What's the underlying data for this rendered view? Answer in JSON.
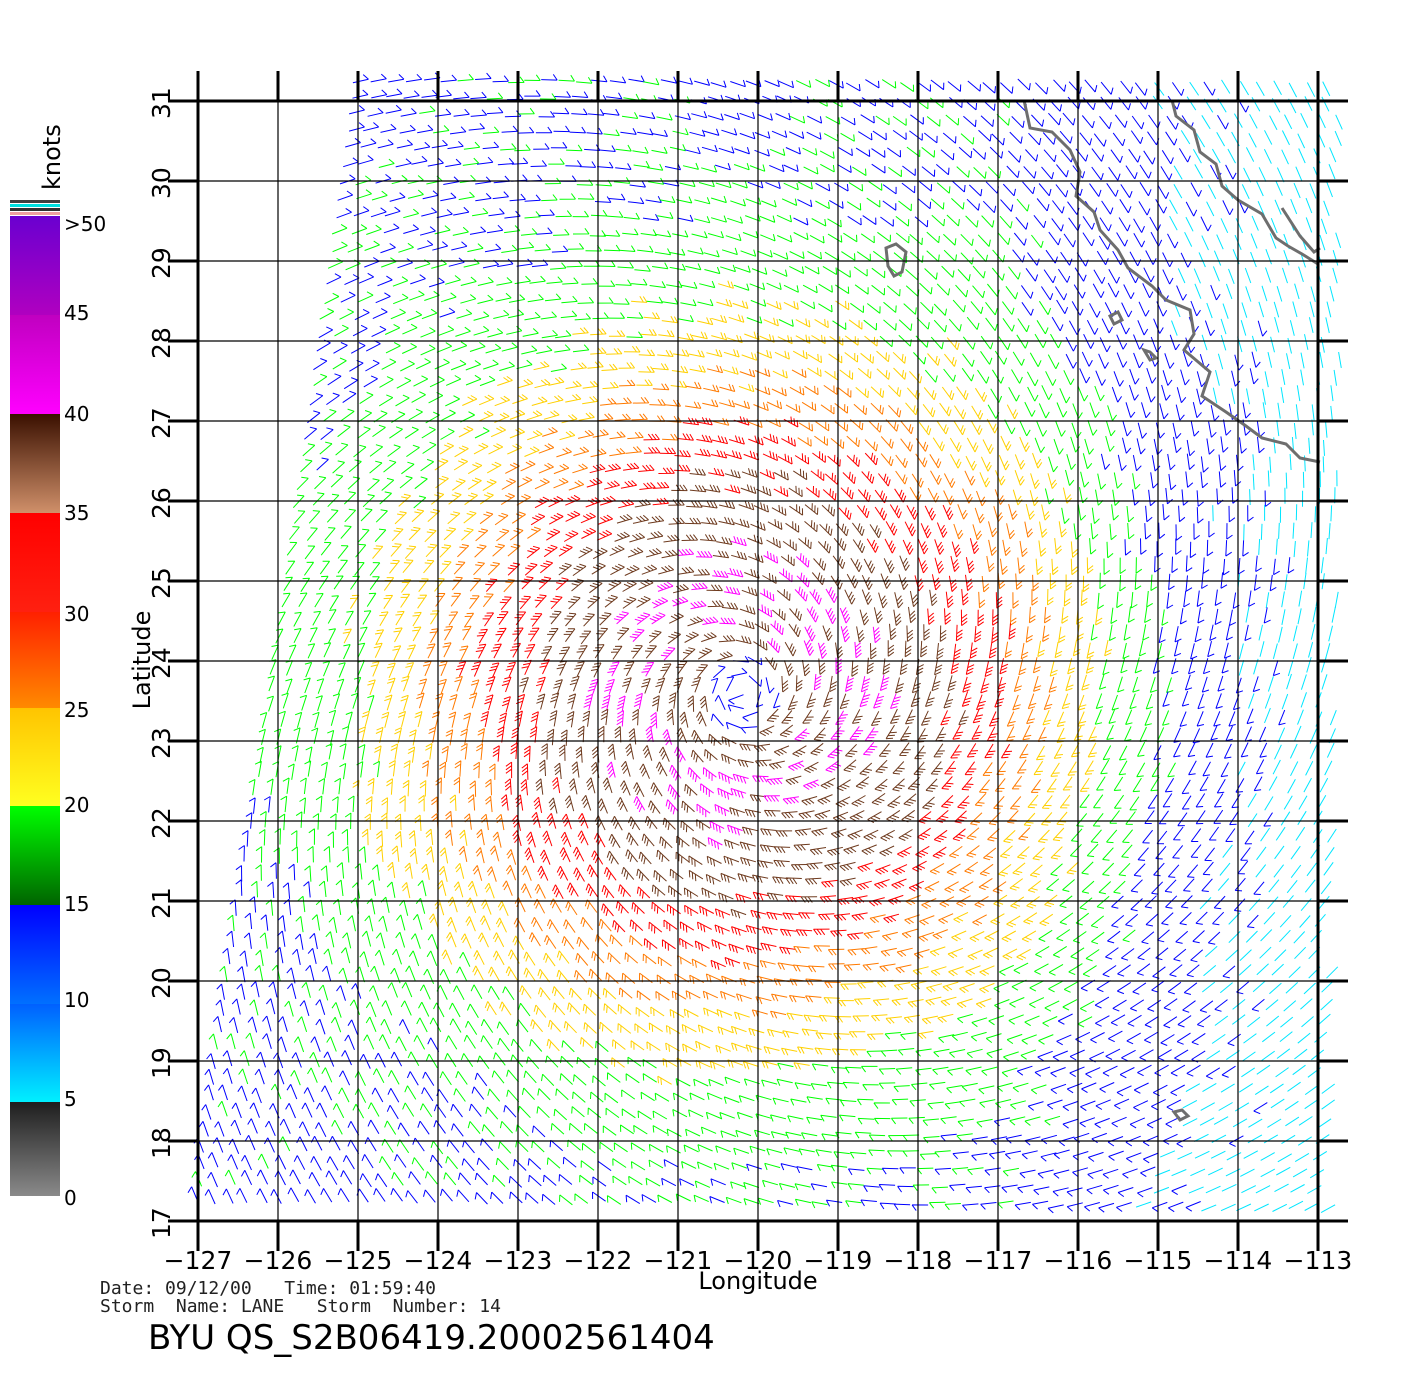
{
  "map": {
    "xlabel": "Longitude",
    "ylabel": "Latitude",
    "lon_range": [
      -127,
      -113
    ],
    "lat_range": [
      17,
      31
    ],
    "lon_ticks": [
      "−127",
      "−126",
      "−125",
      "−124",
      "−123",
      "−122",
      "−121",
      "−120",
      "−119",
      "−118",
      "−117",
      "−116",
      "−115",
      "−114",
      "−113"
    ],
    "lat_ticks": [
      "17",
      "18",
      "19",
      "20",
      "21",
      "22",
      "23",
      "24",
      "25",
      "26",
      "27",
      "28",
      "29",
      "30",
      "31"
    ],
    "storm_center": {
      "lon": -120.2,
      "lat": 23.6
    },
    "coast_color": "#6e6e6e",
    "grid_color": "#000000"
  },
  "colorbar": {
    "title": "knots",
    "labels": [
      ">50",
      "45",
      "40",
      "35",
      "30",
      "25",
      "20",
      "15",
      "10",
      "5",
      "0"
    ],
    "colors": {
      "0-5": "#808080",
      "5-10": "#00e6ff",
      "10-15": "#0000ff",
      "15-20": "#00ff00",
      "20-25": "#ffd000",
      "25-30": "#ff7a00",
      "30-35": "#ff0000",
      "35-40": "#6e3a1e",
      "40-45": "#ff00ff",
      "45-50": "#8a00d0"
    }
  },
  "info": {
    "date_line": "Date: 09/12/00   Time: 01:59:40",
    "storm_line": "Storm  Name: LANE   Storm  Number: 14",
    "title": "BYU  QS_S2B06419.20002561404"
  }
}
